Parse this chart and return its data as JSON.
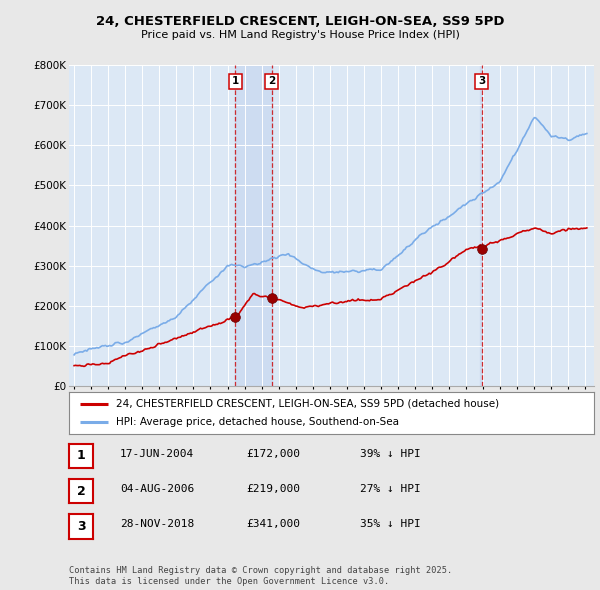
{
  "title": "24, CHESTERFIELD CRESCENT, LEIGH-ON-SEA, SS9 5PD",
  "subtitle": "Price paid vs. HM Land Registry's House Price Index (HPI)",
  "ylim": [
    0,
    800000
  ],
  "yticks": [
    0,
    100000,
    200000,
    300000,
    400000,
    500000,
    600000,
    700000,
    800000
  ],
  "ytick_labels": [
    "£0",
    "£100K",
    "£200K",
    "£300K",
    "£400K",
    "£500K",
    "£600K",
    "£700K",
    "£800K"
  ],
  "hpi_color": "#7aace8",
  "price_color": "#cc0000",
  "sale_year_floats": [
    2004.46,
    2006.59,
    2018.91
  ],
  "sale_prices": [
    172000,
    219000,
    341000
  ],
  "sale_labels": [
    "1",
    "2",
    "3"
  ],
  "annotation_rows": [
    [
      "1",
      "17-JUN-2004",
      "£172,000",
      "39% ↓ HPI"
    ],
    [
      "2",
      "04-AUG-2006",
      "£219,000",
      "27% ↓ HPI"
    ],
    [
      "3",
      "28-NOV-2018",
      "£341,000",
      "35% ↓ HPI"
    ]
  ],
  "legend_entries": [
    "24, CHESTERFIELD CRESCENT, LEIGH-ON-SEA, SS9 5PD (detached house)",
    "HPI: Average price, detached house, Southend-on-Sea"
  ],
  "footer": "Contains HM Land Registry data © Crown copyright and database right 2025.\nThis data is licensed under the Open Government Licence v3.0.",
  "background_color": "#e8e8e8",
  "plot_bg_color": "#dce8f5",
  "vline_color": "#cc0000",
  "shade_color": "#c8d8f0",
  "label_border_color": "#cc0000",
  "grid_color": "#ffffff",
  "xlim_left": 1994.7,
  "xlim_right": 2025.5
}
